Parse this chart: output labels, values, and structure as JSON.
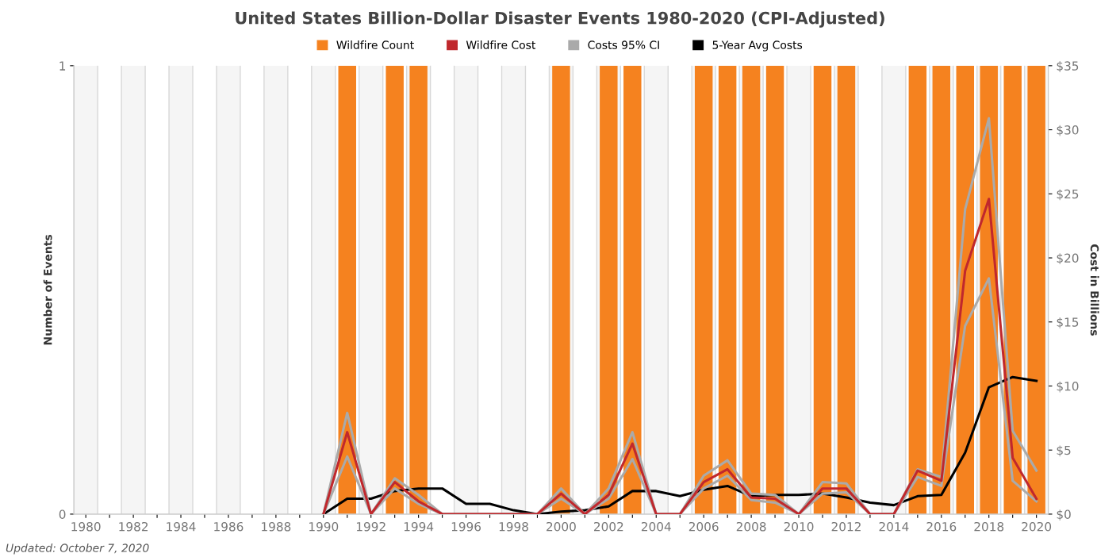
{
  "chart_data": {
    "type": "bar",
    "title": "United States Billion-Dollar Disaster Events 1980-2020 (CPI-Adjusted)",
    "ylabel": "Number of Events",
    "y2label": "Cost in Billions",
    "categories": [
      "1980",
      null,
      "1982",
      null,
      "1984",
      null,
      "1986",
      null,
      "1988",
      null,
      "1990",
      null,
      "1992",
      null,
      "1994",
      null,
      "1996",
      null,
      "1998",
      null,
      "2000",
      null,
      "2002",
      null,
      "2004",
      null,
      "2006",
      null,
      "2008",
      null,
      "2010",
      null,
      "2012",
      null,
      "2014",
      null,
      "2016",
      null,
      "2018",
      null,
      "2020"
    ],
    "series": [
      {
        "name": "Wildfire Count",
        "color": "#f5821f",
        "values": [
          0,
          0,
          0,
          0,
          0,
          0,
          0,
          0,
          0,
          0,
          0,
          1,
          0,
          1,
          1,
          0,
          0,
          0,
          0,
          0,
          1,
          0,
          1,
          1,
          0,
          0,
          1,
          1,
          1,
          1,
          0,
          1,
          1,
          0,
          0,
          1,
          1,
          1,
          1,
          1,
          1
        ]
      },
      {
        "name": "Wildfire Cost",
        "type": "line",
        "axis": "y2",
        "color": "#c0282d",
        "values": [
          null,
          null,
          null,
          null,
          null,
          null,
          null,
          null,
          null,
          null,
          0,
          6.4,
          0,
          2.5,
          1.0,
          0,
          0,
          0,
          0,
          0,
          1.6,
          0,
          1.5,
          5.5,
          0,
          0,
          2.5,
          3.5,
          1.3,
          1.2,
          0,
          2.0,
          2.0,
          0,
          0,
          3.4,
          2.6,
          19.0,
          24.6,
          4.4,
          1.2
        ]
      },
      {
        "name": "Costs 95% CI",
        "type": "line",
        "axis": "y2",
        "color": "#aaaaaa",
        "values": [
          null,
          null,
          null,
          null,
          null,
          null,
          null,
          null,
          null,
          null,
          0,
          7.9,
          0,
          2.8,
          1.5,
          0,
          0,
          0,
          0,
          0,
          2.0,
          0,
          2.0,
          6.4,
          0,
          0,
          3.0,
          4.2,
          1.6,
          1.5,
          0,
          2.5,
          2.4,
          0,
          0,
          3.5,
          2.9,
          23.8,
          30.9,
          6.5,
          3.4
        ]
      },
      {
        "type": "line",
        "axis": "y2",
        "color": "#aaaaaa",
        "values": [
          null,
          null,
          null,
          null,
          null,
          null,
          null,
          null,
          null,
          null,
          0,
          4.5,
          0,
          2.0,
          0.8,
          0,
          0,
          0,
          0,
          0,
          1.2,
          0,
          1.2,
          4.3,
          0,
          0,
          2.0,
          3.0,
          1.1,
          0.9,
          0,
          1.6,
          1.7,
          0,
          0,
          2.9,
          2.2,
          14.7,
          18.4,
          2.6,
          1.0
        ]
      },
      {
        "name": "5-Year Avg Costs",
        "type": "line",
        "axis": "y2",
        "color": "#000000",
        "values": [
          null,
          null,
          null,
          null,
          null,
          null,
          null,
          null,
          null,
          null,
          0,
          1.2,
          1.2,
          1.8,
          2.0,
          2.0,
          0.8,
          0.8,
          0.3,
          0,
          0.2,
          0.3,
          0.6,
          1.8,
          1.8,
          1.4,
          1.9,
          2.2,
          1.4,
          1.5,
          1.5,
          1.6,
          1.3,
          0.9,
          0.7,
          1.4,
          1.5,
          4.8,
          9.9,
          10.7,
          10.4
        ]
      }
    ],
    "ylim": [
      0,
      1
    ],
    "yticks": [
      0,
      1
    ],
    "y2lim": [
      0,
      35
    ],
    "y2ticks": [
      {
        "value": 0,
        "label": "$0"
      },
      {
        "value": 5,
        "label": "$5"
      },
      {
        "value": 10,
        "label": "$10"
      },
      {
        "value": 15,
        "label": "$15"
      },
      {
        "value": 20,
        "label": "$20"
      },
      {
        "value": 25,
        "label": "$25"
      },
      {
        "value": 30,
        "label": "$30"
      },
      {
        "value": 35,
        "label": "$35"
      }
    ],
    "grid": "x",
    "legend": "top",
    "marker": "none",
    "line_style": "solid",
    "annotations": [
      "Updated: October 7, 2020"
    ]
  }
}
